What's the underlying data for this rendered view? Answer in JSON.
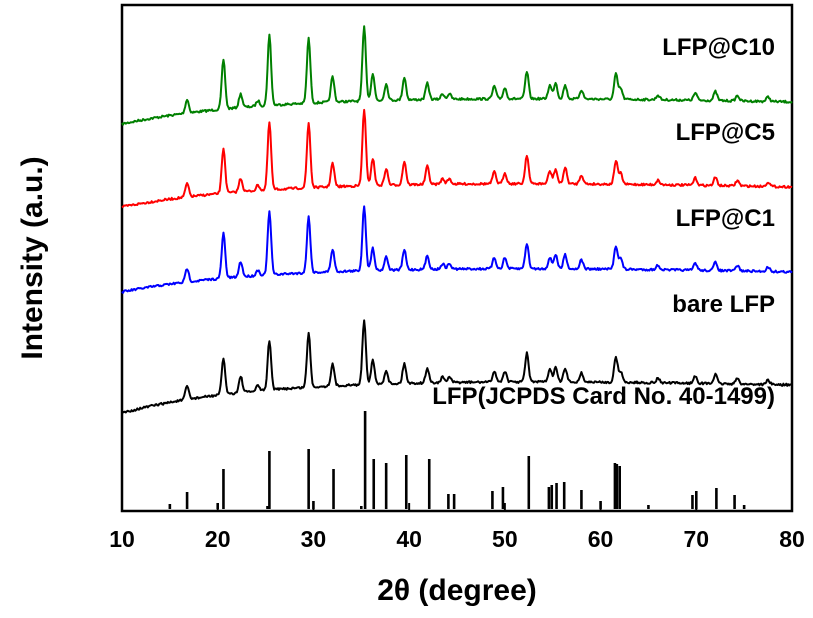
{
  "chart_data": {
    "type": "line",
    "xlabel": "2θ (degree)",
    "ylabel": "Intensity (a.u.)",
    "xlim": [
      10,
      80
    ],
    "xticks": [
      10,
      20,
      30,
      40,
      50,
      60,
      70,
      80
    ],
    "y_ticks_shown": false,
    "grid": false,
    "legend": "inline labels at right above each curve",
    "series": [
      {
        "name": "LFP@C10",
        "color": "#008000",
        "offset": 3,
        "peaks": [
          [
            16.8,
            0.15
          ],
          [
            20.6,
            0.55
          ],
          [
            22.4,
            0.15
          ],
          [
            24.2,
            0.06
          ],
          [
            25.4,
            0.78
          ],
          [
            29.5,
            0.72
          ],
          [
            32.0,
            0.28
          ],
          [
            35.3,
            0.82
          ],
          [
            36.2,
            0.3
          ],
          [
            37.6,
            0.18
          ],
          [
            39.5,
            0.25
          ],
          [
            41.9,
            0.18
          ],
          [
            43.5,
            0.06
          ],
          [
            44.2,
            0.06
          ],
          [
            48.9,
            0.14
          ],
          [
            50.0,
            0.12
          ],
          [
            52.3,
            0.3
          ],
          [
            54.7,
            0.15
          ],
          [
            55.3,
            0.18
          ],
          [
            56.3,
            0.15
          ],
          [
            58.0,
            0.1
          ],
          [
            61.6,
            0.28
          ],
          [
            62.1,
            0.12
          ],
          [
            66.0,
            0.05
          ],
          [
            69.9,
            0.08
          ],
          [
            72.0,
            0.1
          ],
          [
            74.3,
            0.06
          ],
          [
            77.5,
            0.05
          ]
        ]
      },
      {
        "name": "LFP@C5",
        "color": "#ff0000",
        "offset": 2,
        "peaks": [
          [
            16.8,
            0.15
          ],
          [
            20.6,
            0.5
          ],
          [
            22.4,
            0.15
          ],
          [
            24.2,
            0.06
          ],
          [
            25.4,
            0.75
          ],
          [
            29.5,
            0.72
          ],
          [
            32.0,
            0.26
          ],
          [
            35.3,
            0.85
          ],
          [
            36.2,
            0.3
          ],
          [
            37.6,
            0.18
          ],
          [
            39.5,
            0.26
          ],
          [
            41.9,
            0.2
          ],
          [
            43.5,
            0.06
          ],
          [
            44.2,
            0.06
          ],
          [
            48.9,
            0.13
          ],
          [
            50.0,
            0.12
          ],
          [
            52.3,
            0.32
          ],
          [
            54.7,
            0.14
          ],
          [
            55.3,
            0.16
          ],
          [
            56.3,
            0.18
          ],
          [
            58.0,
            0.1
          ],
          [
            61.6,
            0.26
          ],
          [
            62.1,
            0.12
          ],
          [
            66.0,
            0.05
          ],
          [
            69.9,
            0.08
          ],
          [
            72.0,
            0.09
          ],
          [
            74.3,
            0.06
          ],
          [
            77.5,
            0.05
          ]
        ]
      },
      {
        "name": "LFP@C1",
        "color": "#0000ff",
        "offset": 1,
        "peaks": [
          [
            16.8,
            0.15
          ],
          [
            20.6,
            0.5
          ],
          [
            22.4,
            0.17
          ],
          [
            24.2,
            0.06
          ],
          [
            25.4,
            0.7
          ],
          [
            29.5,
            0.62
          ],
          [
            32.0,
            0.25
          ],
          [
            35.3,
            0.72
          ],
          [
            36.2,
            0.25
          ],
          [
            37.6,
            0.15
          ],
          [
            39.5,
            0.22
          ],
          [
            41.9,
            0.15
          ],
          [
            43.5,
            0.06
          ],
          [
            44.2,
            0.06
          ],
          [
            48.9,
            0.12
          ],
          [
            50.0,
            0.12
          ],
          [
            52.3,
            0.28
          ],
          [
            54.7,
            0.12
          ],
          [
            55.3,
            0.16
          ],
          [
            56.3,
            0.16
          ],
          [
            58.0,
            0.1
          ],
          [
            61.6,
            0.26
          ],
          [
            62.1,
            0.12
          ],
          [
            66.0,
            0.05
          ],
          [
            69.9,
            0.08
          ],
          [
            72.0,
            0.09
          ],
          [
            74.3,
            0.06
          ],
          [
            77.5,
            0.05
          ]
        ]
      },
      {
        "name": "bare LFP",
        "color": "#000000",
        "offset": 0,
        "peaks": [
          [
            16.8,
            0.15
          ],
          [
            20.6,
            0.4
          ],
          [
            22.4,
            0.18
          ],
          [
            24.2,
            0.06
          ],
          [
            25.4,
            0.55
          ],
          [
            29.5,
            0.6
          ],
          [
            32.0,
            0.24
          ],
          [
            35.3,
            0.72
          ],
          [
            36.2,
            0.27
          ],
          [
            37.6,
            0.15
          ],
          [
            39.5,
            0.22
          ],
          [
            41.9,
            0.16
          ],
          [
            43.5,
            0.06
          ],
          [
            44.2,
            0.06
          ],
          [
            48.9,
            0.12
          ],
          [
            50.0,
            0.12
          ],
          [
            52.3,
            0.32
          ],
          [
            54.7,
            0.14
          ],
          [
            55.3,
            0.16
          ],
          [
            56.3,
            0.15
          ],
          [
            58.0,
            0.1
          ],
          [
            61.6,
            0.28
          ],
          [
            62.1,
            0.12
          ],
          [
            66.0,
            0.05
          ],
          [
            69.9,
            0.08
          ],
          [
            72.0,
            0.1
          ],
          [
            74.3,
            0.06
          ],
          [
            77.5,
            0.05
          ]
        ]
      }
    ],
    "reference": {
      "name": "LFP(JCPDS Card No. 40-1499)",
      "color": "#000000",
      "lines": [
        [
          15.0,
          0.05
        ],
        [
          16.8,
          0.17
        ],
        [
          20.0,
          0.06
        ],
        [
          20.6,
          0.4
        ],
        [
          25.2,
          0.03
        ],
        [
          25.4,
          0.58
        ],
        [
          29.5,
          0.6
        ],
        [
          30.0,
          0.08
        ],
        [
          32.1,
          0.4
        ],
        [
          35.0,
          0.03
        ],
        [
          35.4,
          0.98
        ],
        [
          36.3,
          0.5
        ],
        [
          37.6,
          0.46
        ],
        [
          39.7,
          0.54
        ],
        [
          42.1,
          0.5
        ],
        [
          44.1,
          0.15
        ],
        [
          44.7,
          0.15
        ],
        [
          48.7,
          0.18
        ],
        [
          49.8,
          0.22
        ],
        [
          52.5,
          0.53
        ],
        [
          54.6,
          0.22
        ],
        [
          54.9,
          0.24
        ],
        [
          55.4,
          0.26
        ],
        [
          56.2,
          0.27
        ],
        [
          58.0,
          0.19
        ],
        [
          60.0,
          0.08
        ],
        [
          61.5,
          0.46
        ],
        [
          61.7,
          0.45
        ],
        [
          62.0,
          0.43
        ],
        [
          65.0,
          0.04
        ],
        [
          69.6,
          0.14
        ],
        [
          70.0,
          0.18
        ],
        [
          72.1,
          0.21
        ],
        [
          74.0,
          0.14
        ],
        [
          75.0,
          0.04
        ]
      ]
    }
  }
}
